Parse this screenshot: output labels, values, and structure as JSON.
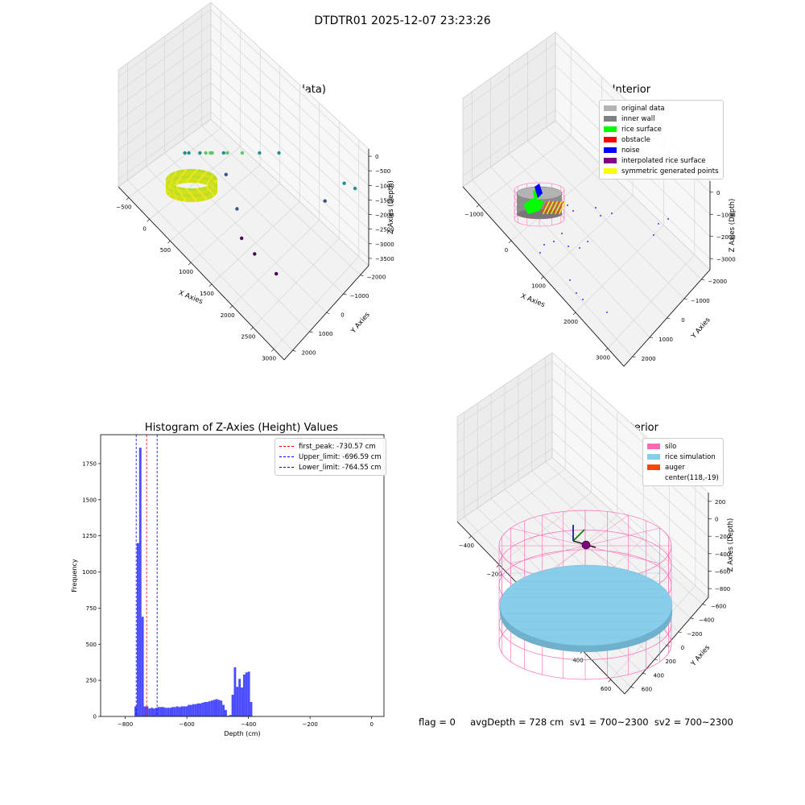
{
  "suptitle": "DTDTR01 2025-12-07 23:23:26",
  "status_line": "flag = 0     avgDepth = 728 cm  sv1 = 700~2300  sv2 = 700~2300",
  "colors": {
    "noise": "#0000ff",
    "rice_surface": "#00ff00",
    "obstacle": "#ff0000",
    "inner_wall": "#808080",
    "original_data": "#b3b3b3",
    "interpolated": "#800080",
    "symmetric": "#ffff00",
    "silo": "#ff69b4",
    "rice_sim": "#87ceeb",
    "auger": "#ff4500",
    "hist_bar": "#4b4bff"
  },
  "chart_data": [
    {
      "type": "scatter",
      "title": "3D Plot of Silo Interior(row data)",
      "xlabel": "X Axies",
      "ylabel": "Y Axies",
      "zlabel": "Z Axies (Depth)",
      "x_ticks": [
        "−500",
        "0",
        "500",
        "1000",
        "1500",
        "2000",
        "2500",
        "3000"
      ],
      "y_ticks": [
        "−2000",
        "−1000",
        "0",
        "1000",
        "2000"
      ],
      "z_ticks": [
        "0",
        "−500",
        "−1000",
        "−1500",
        "−2000",
        "−2500",
        "−3000",
        "−3500"
      ],
      "xlim": [
        -600,
        3200
      ],
      "ylim": [
        -2100,
        2300
      ],
      "zlim": [
        -3700,
        200
      ],
      "points": [
        {
          "x": 200,
          "y": 400,
          "z": -900
        },
        {
          "x": 300,
          "y": 500,
          "z": -1000
        },
        {
          "x": 500,
          "y": 800,
          "z": -1100
        },
        {
          "x": 400,
          "y": 200,
          "z": -1300
        },
        {
          "x": 100,
          "y": -200,
          "z": -1400
        },
        {
          "x": 600,
          "y": 1300,
          "z": -1300
        },
        {
          "x": 900,
          "y": 1500,
          "z": -1400
        },
        {
          "x": 1200,
          "y": 1800,
          "z": -1500
        },
        {
          "x": 200,
          "y": -600,
          "z": -1800
        },
        {
          "x": 500,
          "y": -500,
          "z": -2000
        },
        {
          "x": 800,
          "y": 0,
          "z": -2100
        },
        {
          "x": 2600,
          "y": 2000,
          "z": -1900
        },
        {
          "x": 2800,
          "y": 2100,
          "z": -1850
        },
        {
          "x": 2400,
          "y": 1500,
          "z": -2300
        },
        {
          "x": 1000,
          "y": -300,
          "z": -2500
        },
        {
          "x": 1300,
          "y": -400,
          "z": -2900
        },
        {
          "x": 1600,
          "y": -800,
          "z": -3100
        },
        {
          "x": 1800,
          "y": -600,
          "z": -3300
        },
        {
          "x": 2200,
          "y": -400,
          "z": -3400
        }
      ]
    },
    {
      "type": "scatter",
      "title": "3D classify of Silo Interior",
      "xlabel": "X Axies",
      "ylabel": "Y Axies",
      "zlabel": "Z Axies (Depth)",
      "x_ticks": [
        "−1000",
        "0",
        "1000",
        "2000",
        "3000"
      ],
      "y_ticks": [
        "−2000",
        "−1000",
        "0",
        "1000",
        "2000"
      ],
      "z_ticks": [
        "0",
        "−1000",
        "−2000",
        "−3000"
      ],
      "legend": [
        {
          "label": "original data",
          "color": "#b3b3b3"
        },
        {
          "label": "inner wall",
          "color": "#808080"
        },
        {
          "label": "rice surface",
          "color": "#00ff00"
        },
        {
          "label": "obstacle",
          "color": "#ff0000"
        },
        {
          "label": "noise",
          "color": "#0000ff"
        },
        {
          "label": "interpolated rice surface",
          "color": "#800080"
        },
        {
          "label": "symmetric generated points",
          "color": "#ffff00"
        }
      ],
      "legend_position": "top-right"
    },
    {
      "type": "bar",
      "title": "Histogram of Z-Axies (Height) Values",
      "xlabel": "Depth (cm)",
      "ylabel": "Frequency",
      "x_ticks": [
        "−800",
        "−600",
        "−400",
        "−200",
        "0"
      ],
      "x_tick_values": [
        -800,
        -600,
        -400,
        -200,
        0
      ],
      "y_ticks": [
        "0",
        "250",
        "500",
        "750",
        "1000",
        "1250",
        "1500",
        "1750"
      ],
      "y_tick_values": [
        0,
        250,
        500,
        750,
        1000,
        1250,
        1500,
        1750
      ],
      "xlim": [
        -880,
        40
      ],
      "ylim": [
        0,
        1950
      ],
      "bin_start": -770,
      "bin_width": 7.5,
      "bin_values": [
        70,
        1200,
        1860,
        690,
        70,
        70,
        55,
        60,
        55,
        60,
        65,
        65,
        65,
        60,
        60,
        60,
        65,
        65,
        70,
        65,
        70,
        70,
        70,
        80,
        80,
        85,
        85,
        90,
        90,
        95,
        100,
        100,
        105,
        110,
        115,
        120,
        115,
        110,
        80,
        45,
        5,
        10,
        150,
        340,
        205,
        260,
        200,
        290,
        305,
        310,
        100
      ],
      "vlines": [
        {
          "x": -730.57,
          "label": "first_peak: -730.57 cm",
          "color": "#ff0000"
        },
        {
          "x": -696.59,
          "label": "Upper_limit: -696.59 cm",
          "color": "#0000ff"
        },
        {
          "x": -764.55,
          "label": "Lower_limit: -764.55 cm",
          "color": "#0000ff"
        }
      ],
      "legend_position": "top-right"
    },
    {
      "type": "scatter",
      "title": "3D simulation of Silo Interior",
      "xlabel": "X Axies",
      "ylabel": "Y Axies",
      "zlabel": "Z Axies (Depth)",
      "x_ticks": [
        "−400",
        "−200",
        "0",
        "200",
        "400",
        "600"
      ],
      "y_ticks": [
        "−600",
        "−400",
        "−200",
        "0",
        "200",
        "400",
        "600"
      ],
      "z_ticks": [
        "200",
        "0",
        "−200",
        "−400",
        "−600",
        "−800"
      ],
      "legend": [
        {
          "label": "silo",
          "color": "#ff69b4"
        },
        {
          "label": "rice simulation",
          "color": "#87ceeb"
        },
        {
          "label": "auger",
          "color": "#ff4500"
        },
        {
          "label": "center(118,-19)",
          "color": ""
        }
      ],
      "legend_position": "top-right"
    }
  ]
}
